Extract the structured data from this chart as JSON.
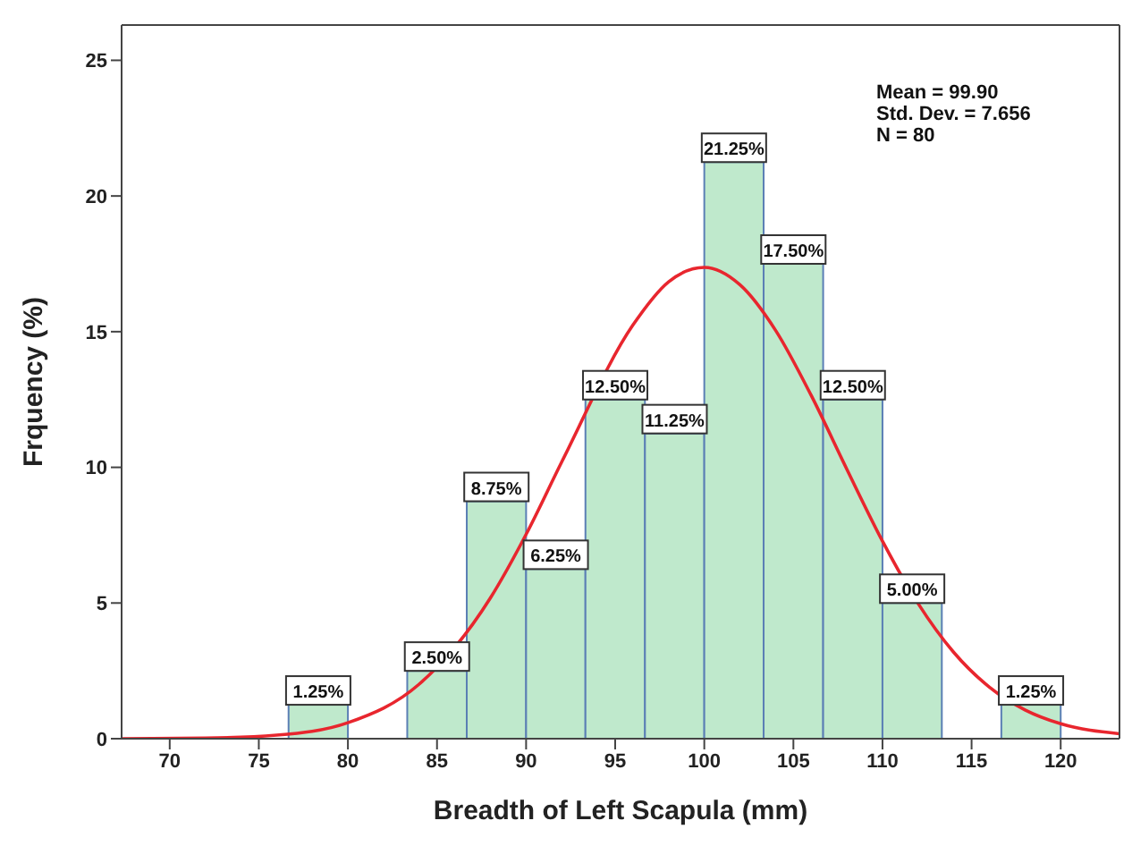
{
  "chart_data": {
    "type": "histogram",
    "xlabel": "Breadth of Left Scapula (mm)",
    "ylabel": "Frquency (%)",
    "annotations": [
      "Mean = 99.90",
      "Std. Dev. = 7.656",
      "N = 80"
    ],
    "bins": [
      76.67,
      80,
      83.33,
      86.67,
      90,
      93.33,
      96.67,
      100,
      103.33,
      106.67,
      110,
      113.33,
      116.67,
      120
    ],
    "xlim": [
      67.3,
      123.3
    ],
    "xticks": [
      70,
      75,
      80,
      85,
      90,
      95,
      100,
      105,
      110,
      115,
      120
    ],
    "ylim": [
      0,
      26.3
    ],
    "yticks": [
      0,
      5,
      10,
      15,
      20,
      25
    ],
    "series": [
      {
        "color": "#bfe9cc",
        "values": [
          1.25,
          0,
          2.5,
          8.75,
          6.25,
          12.5,
          11.25,
          21.25,
          17.5,
          12.5,
          5,
          0,
          1.25
        ],
        "value_labels": [
          "1.25%",
          null,
          "2.50%",
          "8.75%",
          "6.25%",
          "12.50%",
          "11.25%",
          "21.25%",
          "17.50%",
          "12.50%",
          "5.00%",
          null,
          "1.25%"
        ]
      },
      {
        "type": "line",
        "color": "#e8262e",
        "x": [
          67.3,
          72,
          76,
          80,
          84,
          88,
          90,
          92,
          96,
          98,
          100,
          102,
          104,
          106,
          108,
          110,
          112,
          114,
          116,
          118,
          120,
          123.3
        ],
        "values": [
          0,
          0.02,
          0.13,
          0.59,
          2.01,
          5.19,
          7.53,
          10.2,
          15.25,
          16.84,
          17.37,
          16.73,
          15.05,
          12.65,
          9.93,
          7.28,
          4.98,
          3.18,
          1.9,
          1.06,
          0.55,
          0.18
        ]
      }
    ]
  }
}
